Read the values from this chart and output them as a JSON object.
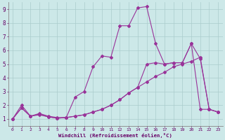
{
  "xlabel": "Windchill (Refroidissement éolien,°C)",
  "background_color": "#cce8e8",
  "line_color": "#993399",
  "grid_color": "#aacccc",
  "xlim": [
    -0.5,
    23.5
  ],
  "ylim": [
    0.5,
    9.5
  ],
  "xticks": [
    0,
    1,
    2,
    3,
    4,
    5,
    6,
    7,
    8,
    9,
    10,
    11,
    12,
    13,
    14,
    15,
    16,
    17,
    18,
    19,
    20,
    21,
    22,
    23
  ],
  "yticks": [
    1,
    2,
    3,
    4,
    5,
    6,
    7,
    8,
    9
  ],
  "series1_x": [
    0,
    1,
    2,
    3,
    4,
    5,
    6,
    7,
    8,
    9,
    10,
    11,
    12,
    13,
    14,
    15,
    16,
    17,
    18,
    19,
    20,
    21,
    22,
    23
  ],
  "series1_y": [
    1.0,
    2.0,
    1.2,
    1.4,
    1.2,
    1.1,
    1.1,
    2.6,
    3.0,
    4.8,
    5.6,
    5.5,
    7.8,
    7.8,
    9.1,
    9.2,
    6.5,
    5.0,
    5.1,
    5.1,
    6.5,
    5.4,
    1.7,
    1.5
  ],
  "series2_x": [
    0,
    1,
    2,
    3,
    4,
    5,
    6,
    7,
    8,
    9,
    10,
    11,
    12,
    13,
    14,
    15,
    16,
    17,
    18,
    19,
    20,
    21,
    22,
    23
  ],
  "series2_y": [
    1.0,
    1.8,
    1.2,
    1.3,
    1.15,
    1.05,
    1.1,
    1.2,
    1.3,
    1.5,
    1.7,
    2.0,
    2.4,
    2.9,
    3.3,
    3.7,
    4.1,
    4.4,
    4.8,
    5.0,
    5.2,
    5.5,
    1.7,
    1.5
  ],
  "series3_x": [
    0,
    1,
    2,
    3,
    4,
    5,
    6,
    7,
    8,
    9,
    10,
    11,
    12,
    13,
    14,
    15,
    16,
    17,
    18,
    19,
    20,
    21,
    22,
    23
  ],
  "series3_y": [
    1.0,
    1.8,
    1.2,
    1.35,
    1.15,
    1.05,
    1.1,
    1.2,
    1.3,
    1.5,
    1.7,
    2.0,
    2.4,
    2.9,
    3.3,
    5.0,
    5.1,
    5.0,
    5.1,
    5.1,
    6.5,
    1.7,
    1.7,
    1.5
  ]
}
